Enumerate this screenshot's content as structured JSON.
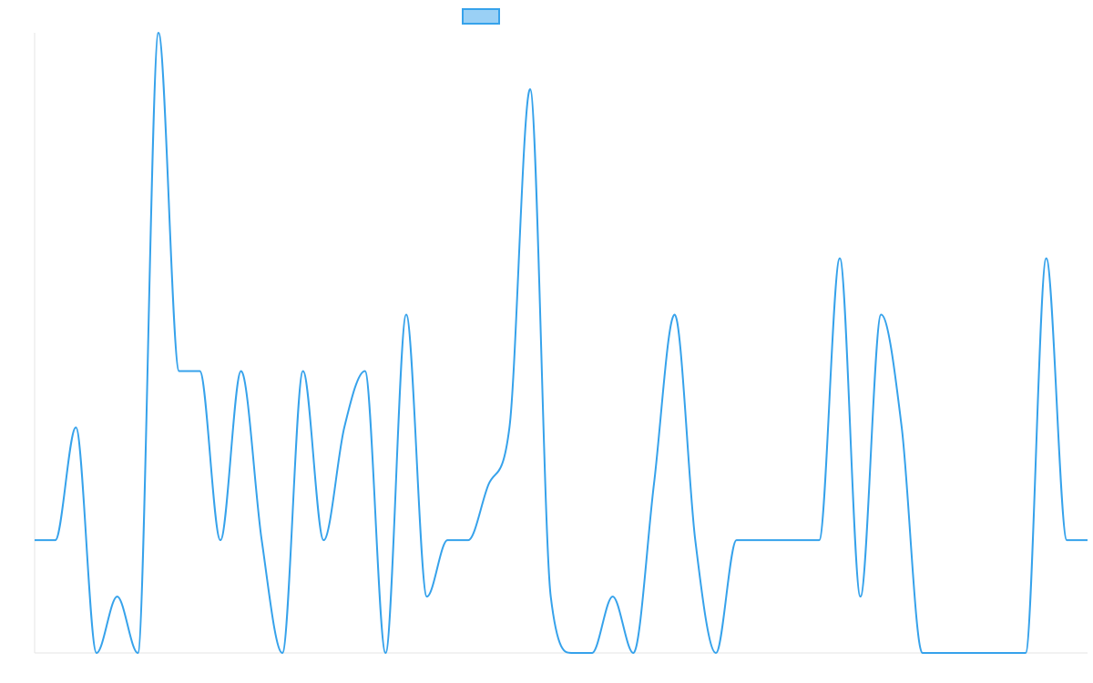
{
  "colors": {
    "line": "#36a2eb",
    "legend_fill": "#9ad0f5",
    "axis": "#e5e5e5",
    "background": "#ffffff"
  },
  "legend": {
    "placement": "top-center",
    "label": ""
  },
  "chart_data": {
    "type": "line",
    "title": "",
    "xlabel": "",
    "ylabel": "",
    "grid": false,
    "ylim": [
      0,
      11
    ],
    "x": [
      0,
      1,
      2,
      3,
      4,
      5,
      6,
      7,
      8,
      9,
      10,
      11,
      12,
      13,
      14,
      15,
      16,
      17,
      18,
      19,
      20,
      21,
      22,
      23,
      24,
      25,
      26,
      27,
      28,
      29,
      30,
      31,
      32,
      33,
      34,
      35,
      36,
      37,
      38,
      39,
      40,
      41,
      42,
      43,
      44,
      45,
      46,
      47,
      48,
      49,
      50,
      51
    ],
    "series": [
      {
        "name": "",
        "values": [
          2,
          2,
          4,
          0,
          1,
          0,
          11,
          5,
          5,
          2,
          5,
          2,
          0,
          5,
          2,
          4,
          5,
          0,
          6,
          1,
          2,
          2,
          3,
          4,
          10,
          1,
          0,
          0,
          1,
          0,
          3,
          6,
          2,
          0,
          2,
          2,
          2,
          2,
          2,
          7,
          1,
          6,
          4,
          0,
          0,
          0,
          0,
          0,
          0,
          7,
          2,
          2
        ]
      }
    ]
  }
}
